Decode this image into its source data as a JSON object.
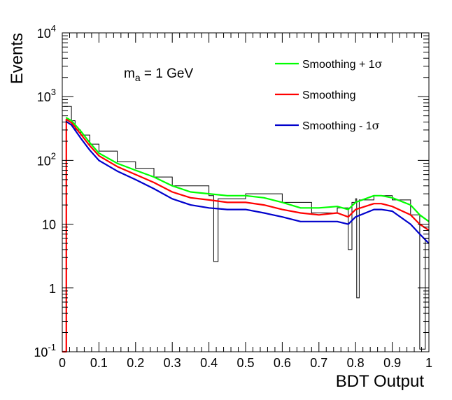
{
  "chart_data": {
    "type": "line",
    "title": "",
    "xlabel": "BDT Output",
    "ylabel": "Events",
    "xlim": [
      0,
      1
    ],
    "ylim": [
      0.1,
      10000
    ],
    "y_scale": "log",
    "grid": false,
    "legend_placement": "top-right",
    "annotation": {
      "prefix": "m",
      "subscript": "a",
      "suffix": " = 1 GeV"
    },
    "x_ticks": [
      "0",
      "0.1",
      "0.2",
      "0.3",
      "0.4",
      "0.5",
      "0.6",
      "0.7",
      "0.8",
      "0.9",
      "1"
    ],
    "y_ticks": [
      {
        "value": 0.1,
        "base": "10",
        "exp": "-1"
      },
      {
        "value": 1,
        "base": "1",
        "exp": ""
      },
      {
        "value": 10,
        "base": "10",
        "exp": ""
      },
      {
        "value": 100,
        "base": "10",
        "exp": "2"
      },
      {
        "value": 1000,
        "base": "10",
        "exp": "3"
      },
      {
        "value": 10000,
        "base": "10",
        "exp": "4"
      }
    ],
    "legend": [
      {
        "pre": "Smoothing + 1",
        "sym": "σ",
        "color": "#00ff00"
      },
      {
        "pre": "Smoothing",
        "sym": "",
        "color": "#ff0000"
      },
      {
        "pre": "Smoothing - 1",
        "sym": "σ",
        "color": "#0000cc"
      }
    ],
    "histogram": {
      "color": "#000000",
      "x": [
        0.005,
        0.025,
        0.035,
        0.05,
        0.075,
        0.1,
        0.15,
        0.2,
        0.25,
        0.3,
        0.4,
        0.413,
        0.425,
        0.5,
        0.6,
        0.68,
        0.75,
        0.78,
        0.79,
        0.8,
        0.803,
        0.81,
        0.85,
        0.9,
        0.95,
        0.975,
        0.99,
        1.0
      ],
      "y": [
        700,
        420,
        300,
        250,
        180,
        140,
        95,
        75,
        55,
        40,
        28,
        2.6,
        25,
        30,
        22,
        15,
        18,
        4,
        22,
        25,
        0.7,
        24,
        28,
        24,
        14,
        0.11,
        6,
        3
      ]
    },
    "series": [
      {
        "name": "Smoothing + 1σ",
        "color": "#00ff00",
        "x": [
          0.01,
          0.025,
          0.05,
          0.075,
          0.1,
          0.15,
          0.2,
          0.25,
          0.3,
          0.35,
          0.4,
          0.45,
          0.5,
          0.55,
          0.6,
          0.65,
          0.7,
          0.75,
          0.78,
          0.8,
          0.85,
          0.87,
          0.9,
          0.95,
          0.975,
          1.0
        ],
        "y": [
          470,
          420,
          290,
          190,
          130,
          90,
          70,
          55,
          40,
          32,
          30,
          28,
          28,
          26,
          22,
          18,
          18,
          19,
          17,
          22,
          28,
          28,
          26,
          20,
          14,
          11
        ]
      },
      {
        "name": "Smoothing",
        "color": "#ff0000",
        "x": [
          0.0,
          0.011,
          0.0111,
          0.025,
          0.05,
          0.075,
          0.1,
          0.15,
          0.2,
          0.25,
          0.3,
          0.35,
          0.4,
          0.45,
          0.5,
          0.55,
          0.6,
          0.65,
          0.7,
          0.75,
          0.78,
          0.8,
          0.85,
          0.87,
          0.9,
          0.95,
          0.975,
          1.0
        ],
        "y": [
          0.1,
          0.1,
          440,
          390,
          260,
          170,
          118,
          80,
          60,
          45,
          32,
          26,
          24,
          22,
          22,
          20,
          17,
          15,
          14,
          15,
          13,
          17,
          21,
          21,
          19,
          14,
          10,
          8
        ]
      },
      {
        "name": "Smoothing - 1σ",
        "color": "#0000cc",
        "x": [
          0.01,
          0.025,
          0.05,
          0.075,
          0.1,
          0.15,
          0.2,
          0.25,
          0.3,
          0.35,
          0.4,
          0.45,
          0.5,
          0.55,
          0.6,
          0.65,
          0.7,
          0.75,
          0.78,
          0.8,
          0.85,
          0.87,
          0.9,
          0.95,
          0.975,
          1.0
        ],
        "y": [
          410,
          360,
          225,
          145,
          100,
          68,
          50,
          36,
          25,
          20,
          18,
          17,
          17,
          15,
          13,
          11,
          11,
          11,
          10,
          13,
          17,
          17,
          16,
          10,
          7,
          5
        ]
      }
    ]
  }
}
